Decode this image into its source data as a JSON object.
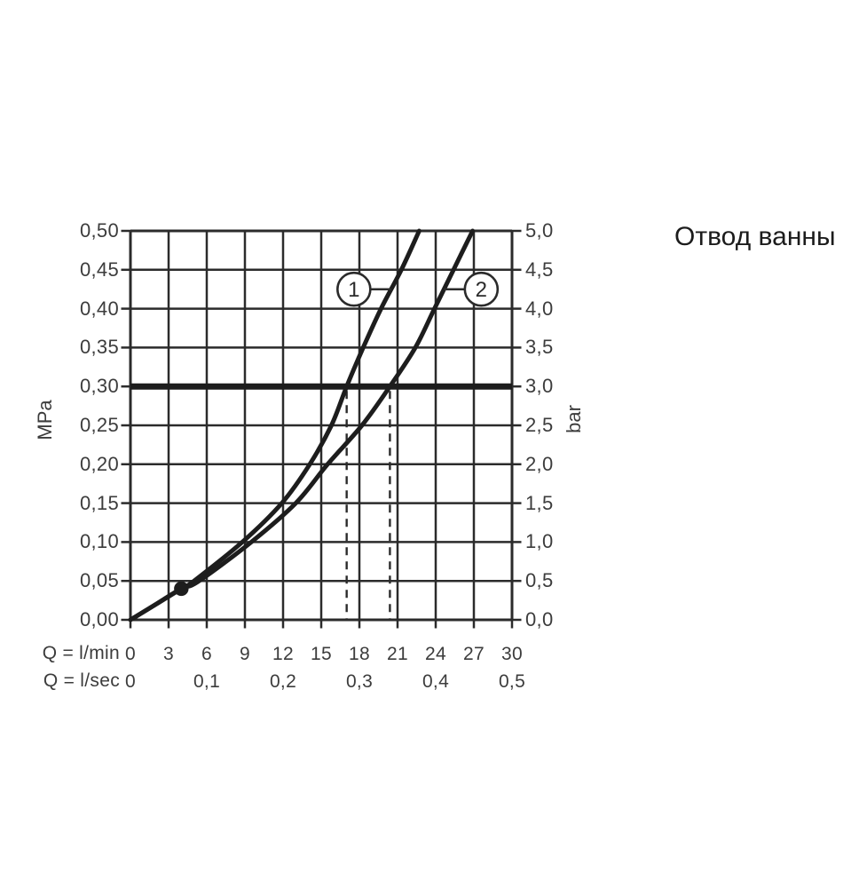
{
  "chart_data": {
    "type": "line",
    "title": "Отвод ванны",
    "grid": true,
    "x_axis": {
      "range": [
        0,
        30
      ],
      "lmin_label": "Q = l/min",
      "lmin_ticks": [
        "0",
        "3",
        "6",
        "9",
        "12",
        "15",
        "18",
        "21",
        "24",
        "27",
        "30"
      ],
      "lsec_label": "Q = l/sec",
      "lsec_ticks": [
        "0",
        "0,1",
        "0,2",
        "0,3",
        "0,4",
        "0,5"
      ]
    },
    "y_left": {
      "label": "MPa",
      "range": [
        0,
        0.5
      ],
      "ticks": [
        "0,50",
        "0,45",
        "0,40",
        "0,35",
        "0,30",
        "0,25",
        "0,20",
        "0,15",
        "0,10",
        "0,05",
        "0,00"
      ]
    },
    "y_right": {
      "label": "bar",
      "range": [
        0,
        5
      ],
      "ticks": [
        "5,0",
        "4,5",
        "4,0",
        "3,5",
        "3,0",
        "2,5",
        "2,0",
        "1,5",
        "1,0",
        "0,5",
        "0,0"
      ]
    },
    "series": [
      {
        "name": "1",
        "points_lmin_mpa": [
          [
            0,
            0
          ],
          [
            2,
            0.02
          ],
          [
            4,
            0.04
          ],
          [
            5,
            0.05
          ],
          [
            8.8,
            0.1
          ],
          [
            11.9,
            0.15
          ],
          [
            14.1,
            0.2
          ],
          [
            15.8,
            0.25
          ],
          [
            17,
            0.3
          ],
          [
            18.3,
            0.35
          ],
          [
            19.7,
            0.4
          ],
          [
            21.3,
            0.45
          ],
          [
            22.7,
            0.5
          ]
        ]
      },
      {
        "name": "2",
        "points_lmin_mpa": [
          [
            0,
            0
          ],
          [
            2,
            0.02
          ],
          [
            4,
            0.04
          ],
          [
            5.4,
            0.05
          ],
          [
            9.5,
            0.1
          ],
          [
            13,
            0.15
          ],
          [
            15.5,
            0.2
          ],
          [
            18.2,
            0.25
          ],
          [
            20.4,
            0.3
          ],
          [
            22.4,
            0.35
          ],
          [
            23.9,
            0.4
          ],
          [
            25.4,
            0.45
          ],
          [
            26.9,
            0.5
          ]
        ]
      }
    ],
    "reference_line_mpa": 0.3,
    "dashed_drop_lines": {
      "from_mpa": 0.3,
      "q_values_lmin": [
        17,
        20.4
      ]
    },
    "operating_point": {
      "q_lmin": 4,
      "mpa": 0.04
    },
    "legend_position": "none",
    "colors": {
      "line": "#1d1d1d",
      "grid": "#2b2b2b",
      "text": "#3c3c3c",
      "title": "#1c1c1c",
      "background": "#ffffff"
    }
  }
}
